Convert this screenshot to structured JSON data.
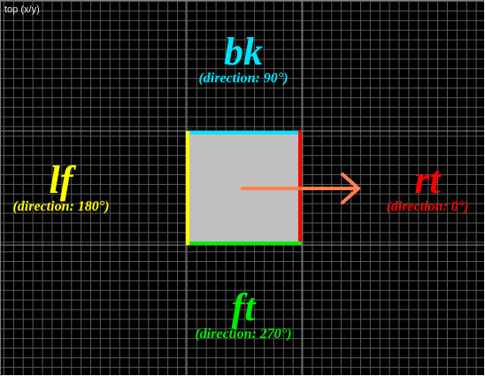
{
  "viewport": {
    "label": "top (x/y)"
  },
  "directions": {
    "back": {
      "name": "bk",
      "angle_text": "(direction: 90°)",
      "color": "#00e5ff"
    },
    "left": {
      "name": "lf",
      "angle_text": "(direction: 180°)",
      "color": "#ffff00"
    },
    "right": {
      "name": "rt",
      "angle_text": "(direction: 0°)",
      "color": "#ff0000"
    },
    "front": {
      "name": "ft",
      "angle_text": "(direction: 270°)",
      "color": "#00ee00"
    }
  },
  "box": {
    "fill": "#c0c0c0",
    "edge_colors": {
      "top": "#00e5ff",
      "left": "#ffff00",
      "right": "#ff0000",
      "bottom": "#00ee00"
    }
  },
  "arrow": {
    "color": "#ff7f50"
  }
}
